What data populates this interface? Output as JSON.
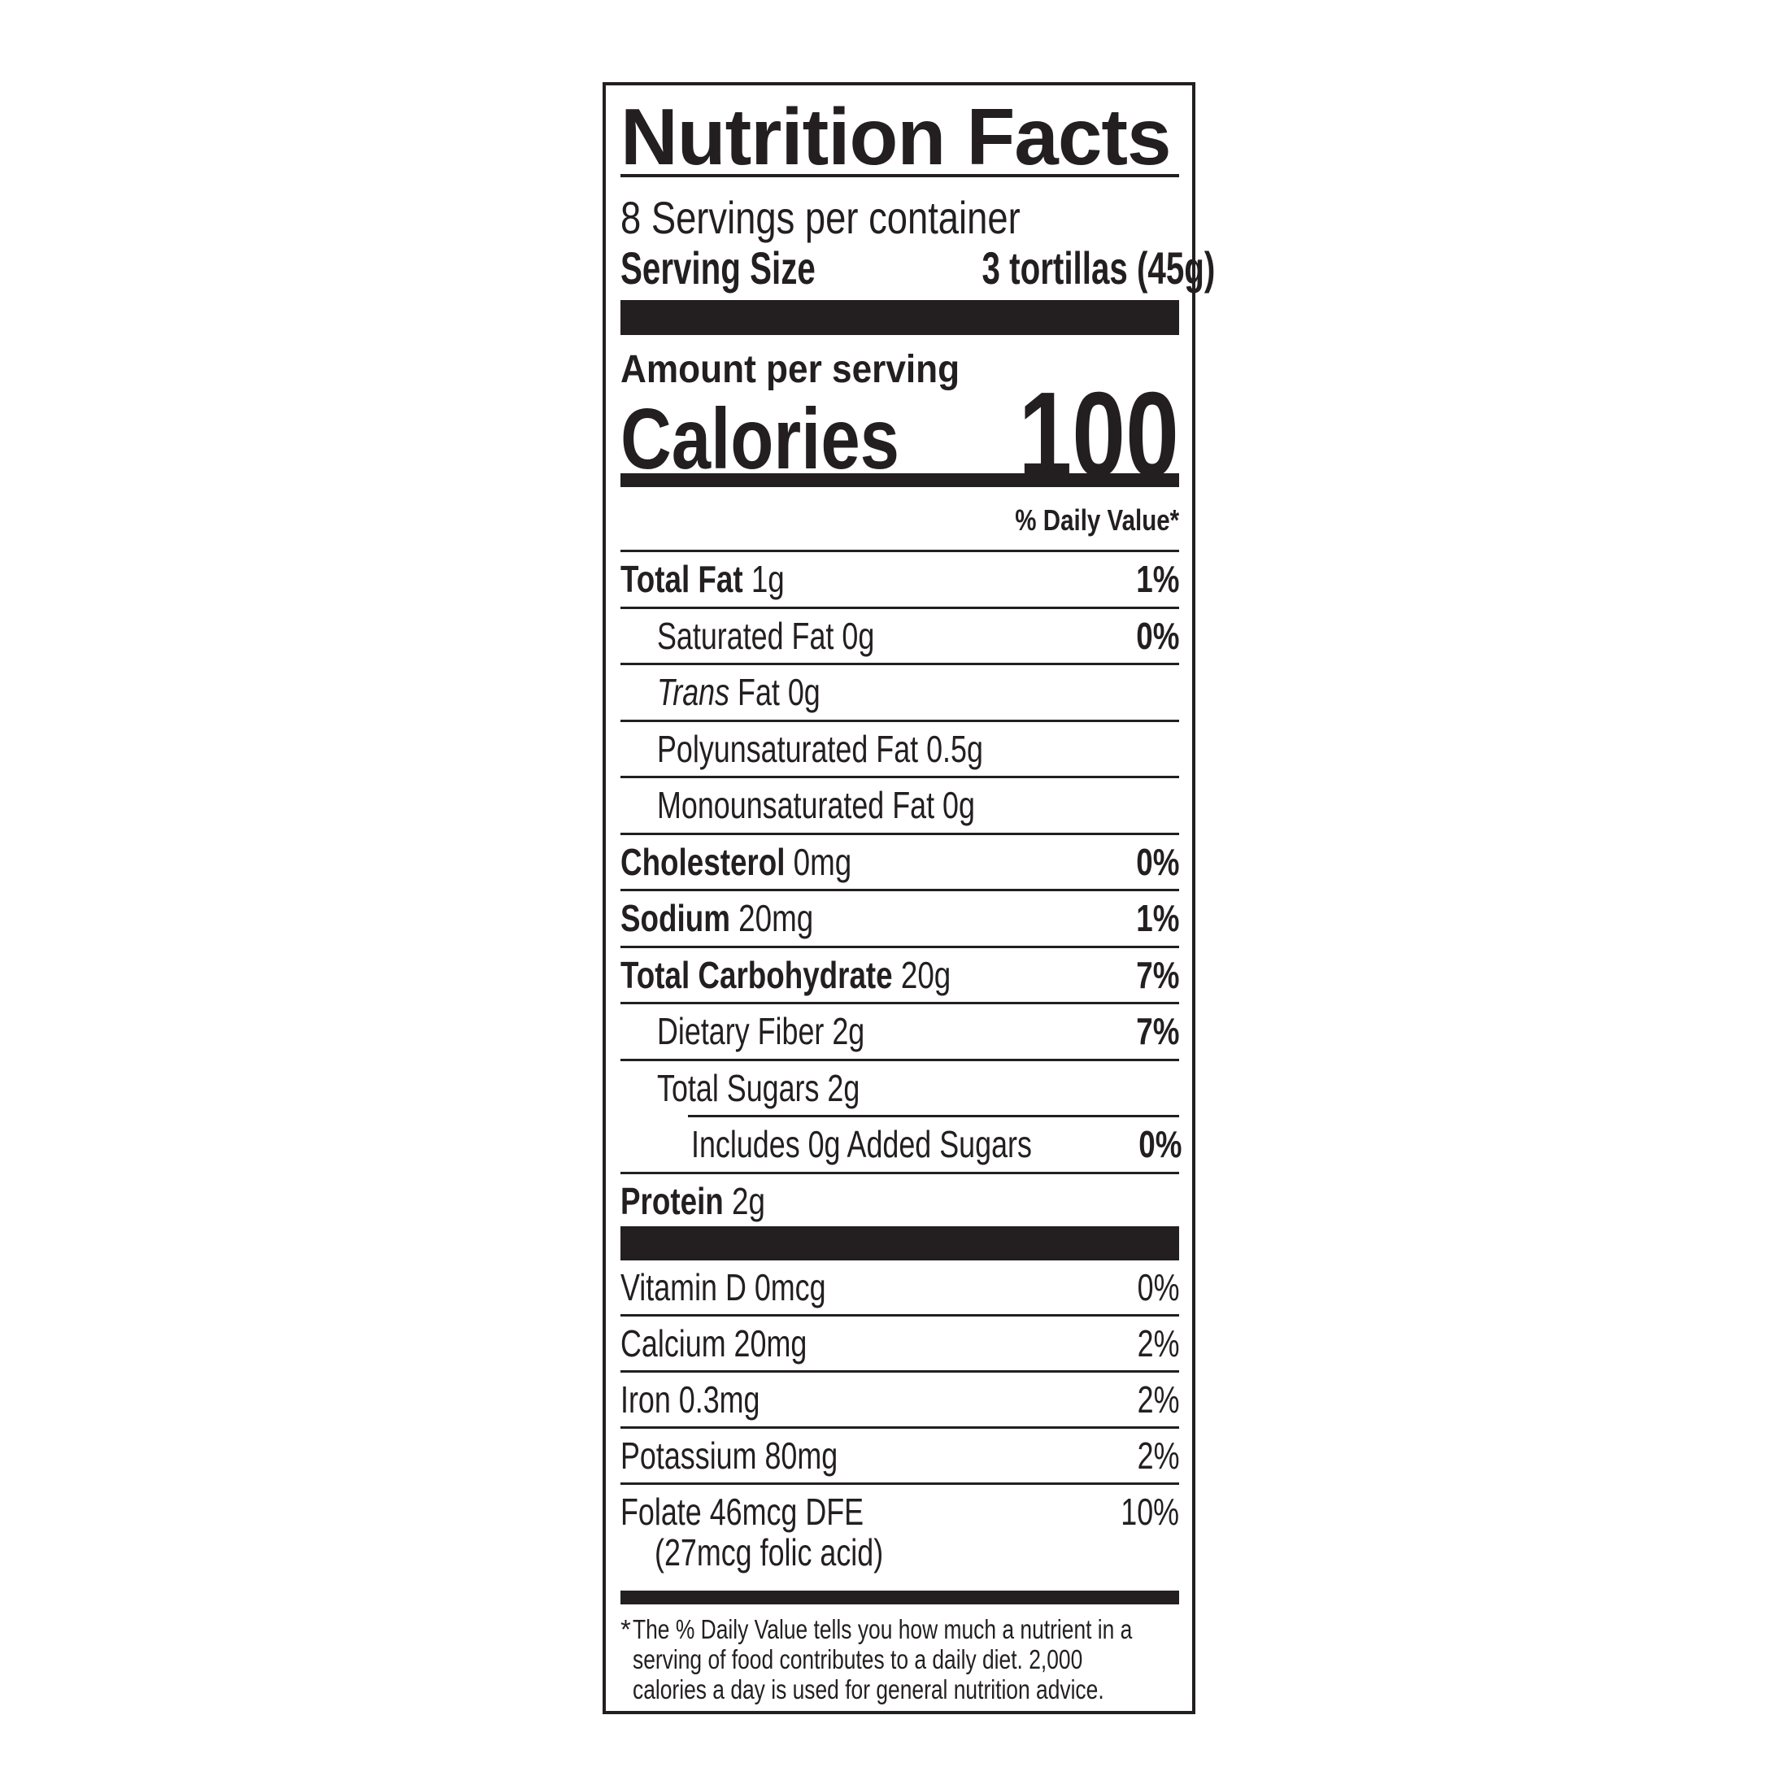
{
  "title": "Nutrition Facts",
  "servings_per_container": "8 Servings per container",
  "serving_size_label": "Serving Size",
  "serving_size_value": "3 tortillas (45g)",
  "amount_per_serving": "Amount per serving",
  "calories_label": "Calories",
  "calories_value": "100",
  "daily_value_header": "% Daily Value*",
  "nutrients": [
    {
      "name": "Total Fat",
      "amount": "1g",
      "dv": "1%"
    },
    {
      "name": "Saturated Fat",
      "amount": "0g",
      "dv": "0%"
    },
    {
      "name": "Trans",
      "amount": "Fat 0g",
      "dv": ""
    },
    {
      "name": "Polyunsaturated Fat",
      "amount": "0.5g",
      "dv": ""
    },
    {
      "name": "Monounsaturated Fat",
      "amount": "0g",
      "dv": ""
    },
    {
      "name": "Cholesterol",
      "amount": "0mg",
      "dv": "0%"
    },
    {
      "name": "Sodium",
      "amount": "20mg",
      "dv": "1%"
    },
    {
      "name": "Total Carbohydrate",
      "amount": "20g",
      "dv": "7%"
    },
    {
      "name": "Dietary Fiber",
      "amount": "2g",
      "dv": "7%"
    },
    {
      "name": "Total Sugars",
      "amount": "2g",
      "dv": ""
    },
    {
      "name": "Includes 0g Added Sugars",
      "amount": "",
      "dv": "0%"
    },
    {
      "name": "Protein",
      "amount": "2g",
      "dv": ""
    }
  ],
  "vitamins": [
    {
      "name": "Vitamin D 0mcg",
      "dv": "0%"
    },
    {
      "name": "Calcium 20mg",
      "dv": "2%"
    },
    {
      "name": "Iron 0.3mg",
      "dv": "2%"
    },
    {
      "name": "Potassium 80mg",
      "dv": "2%"
    }
  ],
  "folate": {
    "name": "Folate 46mcg DFE",
    "detail": "(27mcg folic acid)",
    "dv": "10%"
  },
  "footnote": {
    "marker": "*",
    "lines": [
      "The % Daily Value tells you how much a nutrient in a",
      "serving of food contributes to a daily diet. 2,000",
      "calories a day is used for general nutrition advice."
    ]
  },
  "colors": {
    "ink": "#231f20",
    "background": "#ffffff"
  }
}
